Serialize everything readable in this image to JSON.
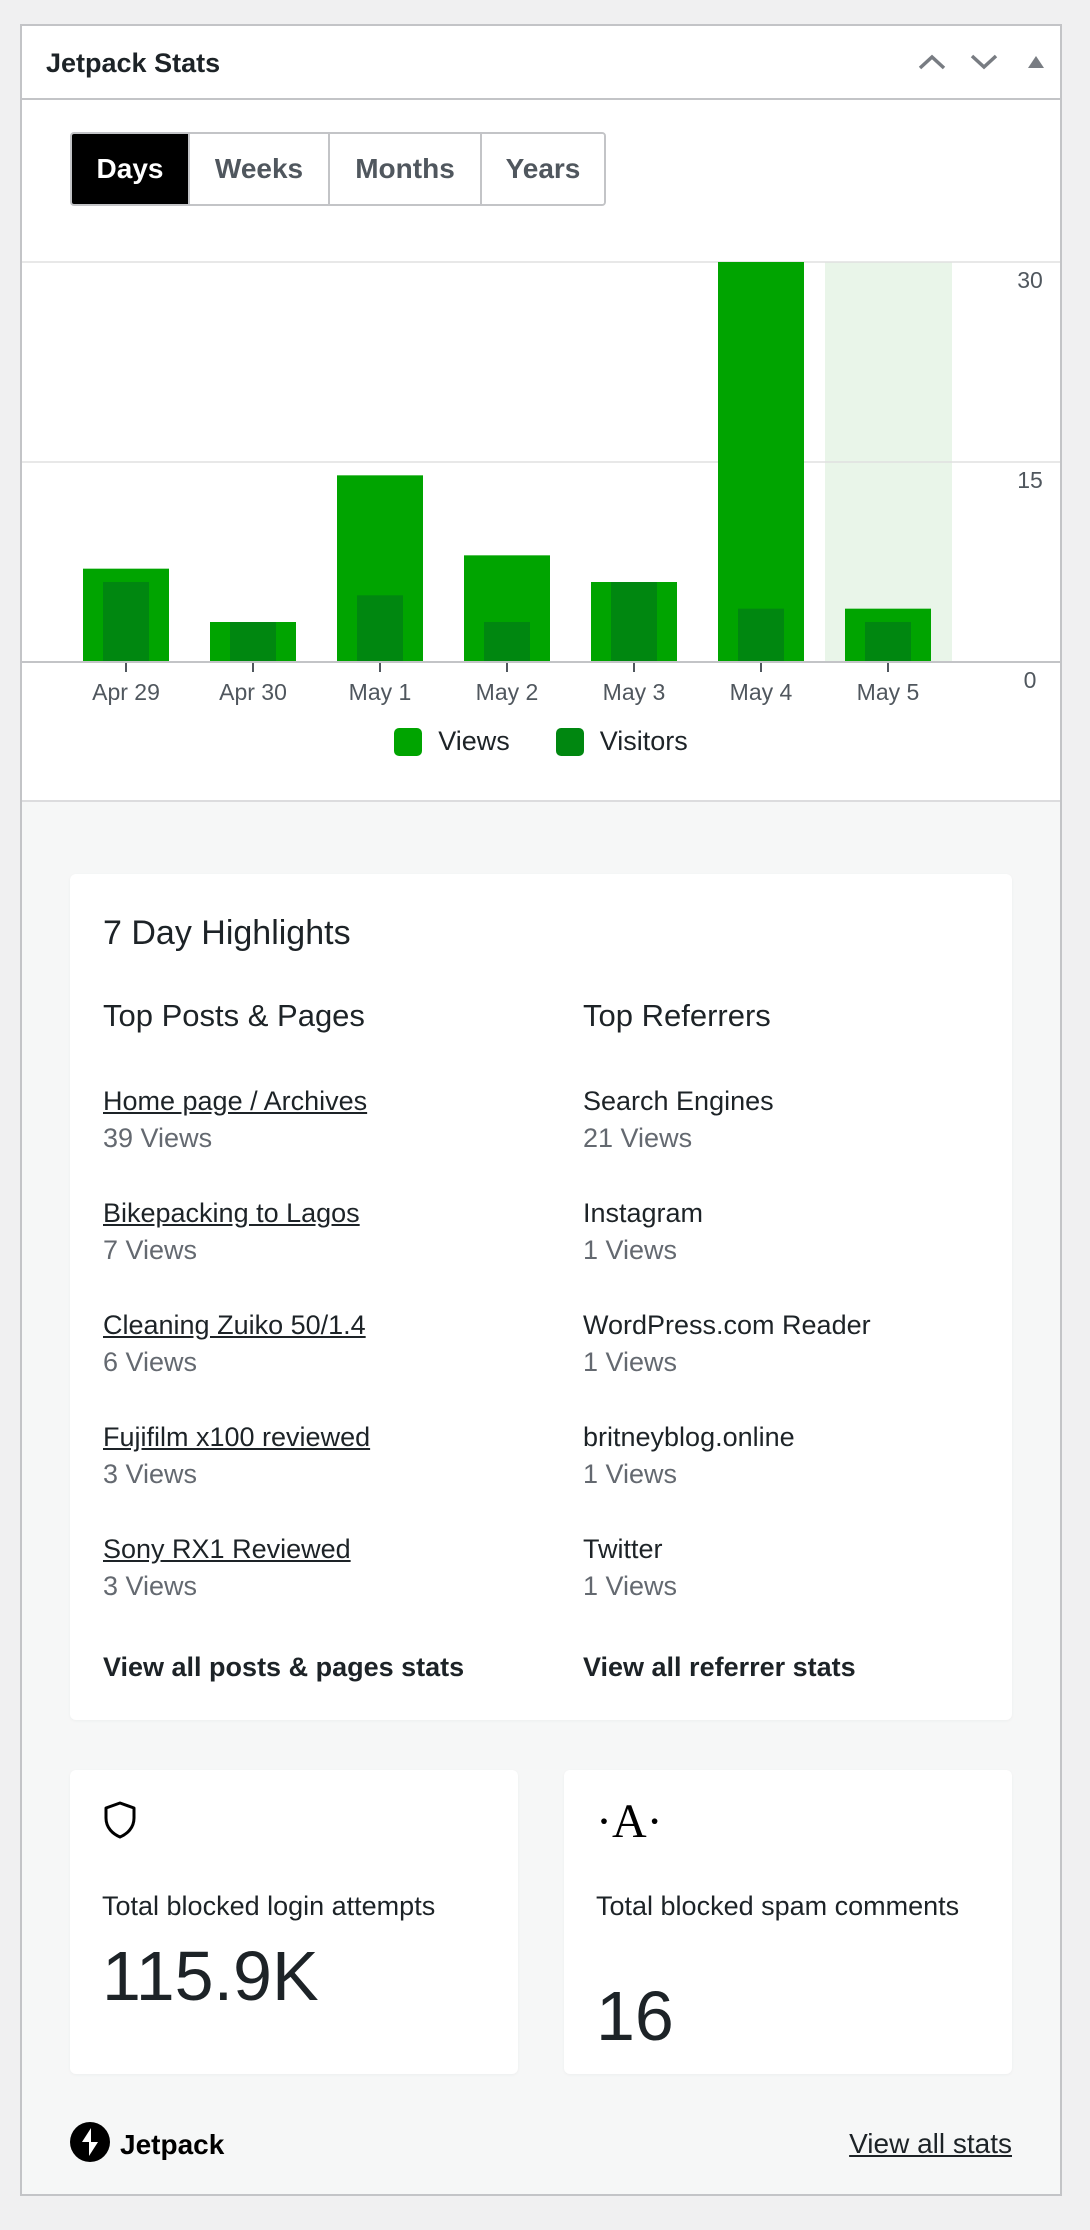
{
  "widget": {
    "title": "Jetpack Stats",
    "move_up_icon": "chevron-up-icon",
    "move_down_icon": "chevron-down-icon",
    "toggle_icon": "triangle-up-icon"
  },
  "period_tabs": [
    {
      "label": "Days",
      "active": true
    },
    {
      "label": "Weeks",
      "active": false
    },
    {
      "label": "Months",
      "active": false
    },
    {
      "label": "Years",
      "active": false
    }
  ],
  "colors": {
    "views": "#00a400",
    "visitors": "#008710",
    "highlight_column": "#e9f5e9",
    "grid": "#e0e0e0"
  },
  "chart_data": {
    "type": "bar",
    "categories": [
      "Apr 29",
      "Apr 30",
      "May 1",
      "May 2",
      "May 3",
      "May 4",
      "May 5"
    ],
    "series": [
      {
        "name": "Views",
        "values": [
          7,
          3,
          14,
          8,
          6,
          30,
          4
        ]
      },
      {
        "name": "Visitors",
        "values": [
          6,
          3,
          5,
          3,
          6,
          4,
          3
        ]
      }
    ],
    "y_ticks": [
      0,
      15,
      30
    ],
    "ylim": [
      0,
      30
    ],
    "y_axis_side": "right",
    "highlighted_category": "May 5",
    "grid": true,
    "legend": "bottom-center"
  },
  "highlights": {
    "title": "7 Day Highlights",
    "top_posts": {
      "heading": "Top Posts & Pages",
      "items": [
        {
          "title": "Home page / Archives",
          "views": "39 Views"
        },
        {
          "title": "Bikepacking to Lagos",
          "views": "7 Views"
        },
        {
          "title": "Cleaning Zuiko 50/1.4",
          "views": "6 Views"
        },
        {
          "title": "Fujifilm x100 reviewed",
          "views": "3 Views"
        },
        {
          "title": "Sony RX1 Reviewed",
          "views": "3 Views"
        }
      ],
      "view_all": "View all posts & pages stats"
    },
    "top_referrers": {
      "heading": "Top Referrers",
      "items": [
        {
          "title": "Search Engines",
          "views": "21 Views"
        },
        {
          "title": "Instagram",
          "views": "1 Views"
        },
        {
          "title": "WordPress.com Reader",
          "views": "1 Views"
        },
        {
          "title": "britneyblog.online",
          "views": "1 Views"
        },
        {
          "title": "Twitter",
          "views": "1 Views"
        }
      ],
      "view_all": "View all referrer stats"
    }
  },
  "protect": {
    "icon": "shield-icon",
    "label": "Total blocked login attempts",
    "value": "115.9K"
  },
  "akismet": {
    "icon": "akismet-icon",
    "icon_glyph": "·A·",
    "label": "Total blocked spam comments",
    "value": "16"
  },
  "footer": {
    "logo_icon": "jetpack-logo-icon",
    "logo_text": "Jetpack",
    "view_all_stats": "View all stats"
  }
}
